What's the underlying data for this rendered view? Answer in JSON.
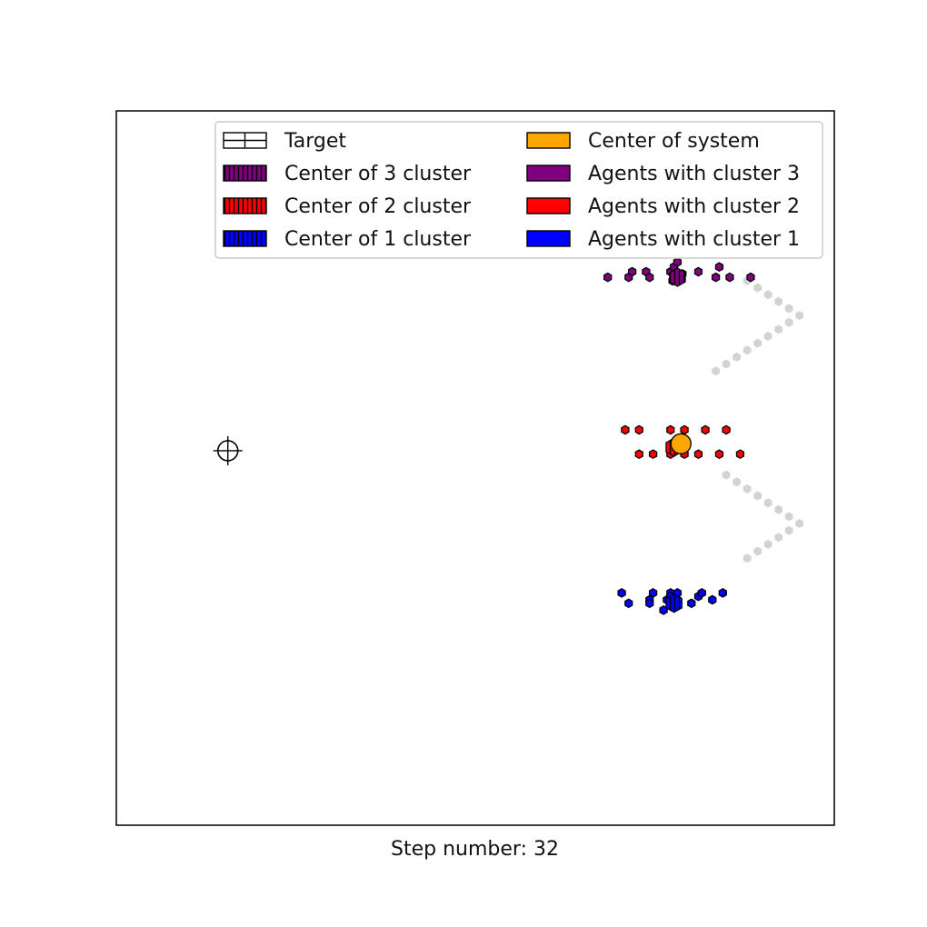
{
  "chart_data": {
    "type": "scatter",
    "title": "",
    "xlabel": "",
    "ylabel": "",
    "axis_ticks": false,
    "grid": false,
    "legend_placement": "upper-right",
    "legend": {
      "left_column": [
        {
          "label": "Target",
          "style": "target"
        },
        {
          "label": "Center of 3 cluster",
          "style": "hatched",
          "color": "#800080"
        },
        {
          "label": "Center of 2 cluster",
          "style": "hatched",
          "color": "#ff0000"
        },
        {
          "label": "Center of 1 cluster",
          "style": "hatched",
          "color": "#0000ff"
        }
      ],
      "right_column": [
        {
          "label": "Center of system",
          "style": "solid",
          "color": "#ffa500"
        },
        {
          "label": "Agents with cluster 3",
          "style": "solid",
          "color": "#800080"
        },
        {
          "label": "Agents with cluster 2",
          "style": "solid",
          "color": "#ff0000"
        },
        {
          "label": "Agents with cluster 1",
          "style": "solid",
          "color": "#0000ff"
        }
      ]
    },
    "target": {
      "x": 1.6,
      "y": 0.9
    },
    "center_of_system": {
      "x": 8.1,
      "y": 1.0
    },
    "trail": {
      "color": "#d3d3d3",
      "points": [
        [
          9.05,
          3.35
        ],
        [
          9.2,
          3.25
        ],
        [
          9.35,
          3.15
        ],
        [
          9.5,
          3.05
        ],
        [
          9.65,
          2.95
        ],
        [
          9.8,
          2.85
        ],
        [
          9.65,
          2.75
        ],
        [
          9.5,
          2.65
        ],
        [
          9.35,
          2.55
        ],
        [
          9.2,
          2.45
        ],
        [
          9.05,
          2.35
        ],
        [
          8.9,
          2.25
        ],
        [
          8.75,
          2.15
        ],
        [
          8.6,
          2.05
        ],
        [
          8.75,
          0.55
        ],
        [
          8.9,
          0.45
        ],
        [
          9.05,
          0.35
        ],
        [
          9.2,
          0.25
        ],
        [
          9.35,
          0.15
        ],
        [
          9.5,
          0.05
        ],
        [
          9.65,
          -0.05
        ],
        [
          9.8,
          -0.15
        ],
        [
          9.65,
          -0.25
        ],
        [
          9.5,
          -0.35
        ],
        [
          9.35,
          -0.45
        ],
        [
          9.2,
          -0.55
        ],
        [
          9.05,
          -0.65
        ]
      ]
    },
    "clusters": [
      {
        "name": "Agents with cluster 3",
        "color": "#800080",
        "center": {
          "x": 8.05,
          "y": 3.4
        },
        "agents": [
          [
            7.05,
            3.4
          ],
          [
            7.35,
            3.4
          ],
          [
            7.4,
            3.48
          ],
          [
            7.6,
            3.48
          ],
          [
            7.65,
            3.4
          ],
          [
            7.95,
            3.48
          ],
          [
            8.0,
            3.55
          ],
          [
            8.05,
            3.62
          ],
          [
            8.1,
            3.4
          ],
          [
            8.35,
            3.48
          ],
          [
            8.65,
            3.55
          ],
          [
            8.6,
            3.4
          ],
          [
            8.8,
            3.4
          ],
          [
            9.1,
            3.4
          ],
          [
            7.98,
            3.35
          ],
          [
            8.12,
            3.45
          ]
        ]
      },
      {
        "name": "Agents with cluster 2",
        "color": "#ff0000",
        "center": {
          "x": 8.0,
          "y": 0.95
        },
        "agents": [
          [
            7.3,
            1.2
          ],
          [
            7.5,
            1.2
          ],
          [
            7.95,
            1.2
          ],
          [
            8.15,
            1.2
          ],
          [
            8.45,
            1.2
          ],
          [
            8.75,
            1.2
          ],
          [
            7.5,
            0.85
          ],
          [
            7.7,
            0.85
          ],
          [
            7.95,
            0.85
          ],
          [
            8.15,
            0.85
          ],
          [
            8.35,
            0.85
          ],
          [
            8.65,
            0.85
          ],
          [
            8.95,
            0.85
          ],
          [
            7.98,
            0.95
          ]
        ]
      },
      {
        "name": "Agents with cluster 1",
        "color": "#0000ff",
        "center": {
          "x": 8.0,
          "y": -1.3
        },
        "agents": [
          [
            7.25,
            -1.15
          ],
          [
            7.35,
            -1.3
          ],
          [
            7.65,
            -1.25
          ],
          [
            7.7,
            -1.15
          ],
          [
            7.65,
            -1.3
          ],
          [
            7.9,
            -1.25
          ],
          [
            7.95,
            -1.15
          ],
          [
            8.05,
            -1.15
          ],
          [
            8.0,
            -1.3
          ],
          [
            7.85,
            -1.4
          ],
          [
            8.25,
            -1.3
          ],
          [
            8.35,
            -1.2
          ],
          [
            8.4,
            -1.15
          ],
          [
            8.55,
            -1.25
          ],
          [
            8.7,
            -1.15
          ],
          [
            7.95,
            -1.2
          ],
          [
            8.05,
            -1.25
          ]
        ]
      }
    ],
    "xlim": [
      0,
      10.3
    ],
    "ylim": [
      -4.5,
      5.8
    ]
  },
  "caption": "Step number: 32"
}
